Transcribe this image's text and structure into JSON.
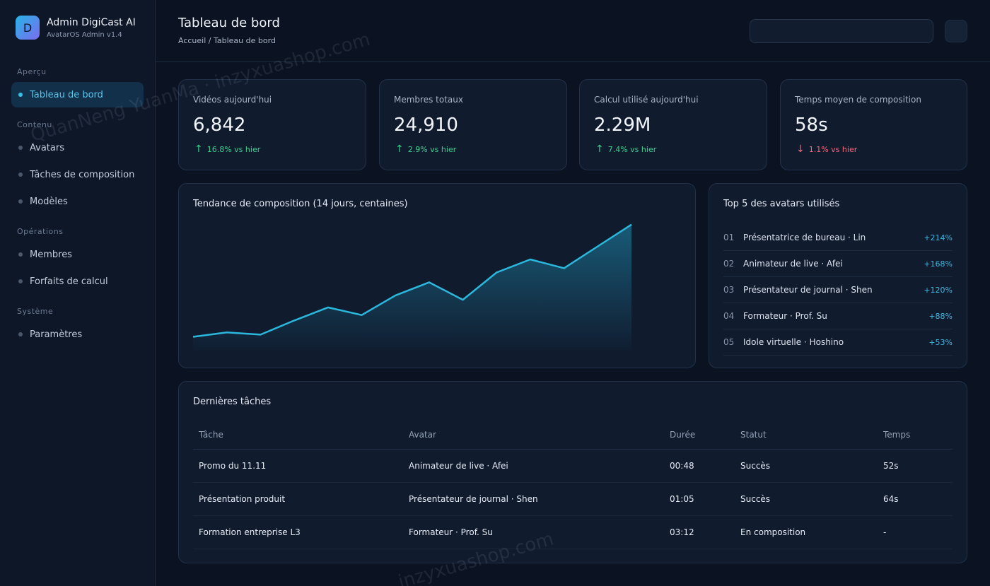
{
  "brand": {
    "initial": "D",
    "name": "Admin DigiCast AI",
    "subtitle": "AvatarOS Admin v1.4"
  },
  "nav": {
    "sections": [
      "Aperçu",
      "Contenu",
      "Opérations",
      "Système"
    ],
    "items": [
      {
        "label": "Tableau de bord"
      },
      {
        "label": "Avatars"
      },
      {
        "label": "Tâches de composition"
      },
      {
        "label": "Modèles"
      },
      {
        "label": "Membres"
      },
      {
        "label": "Forfaits de calcul"
      },
      {
        "label": "Paramètres"
      }
    ]
  },
  "header": {
    "title": "Tableau de bord",
    "breadcrumb": "Accueil / Tableau de bord",
    "search_value": ""
  },
  "stats": [
    {
      "label": "Vidéos aujourd'hui",
      "value": "6,842",
      "delta": "16.8% vs hier",
      "arrow": "↑"
    },
    {
      "label": "Membres totaux",
      "value": "24,910",
      "delta": "2.9% vs hier",
      "arrow": "↑"
    },
    {
      "label": "Calcul utilisé aujourd'hui",
      "value": "2.29M",
      "delta": "7.4% vs hier",
      "arrow": "↑"
    },
    {
      "label": "Temps moyen de composition",
      "value": "58s",
      "delta": "1.1% vs hier",
      "arrow": "↓"
    }
  ],
  "trend": {
    "title": "Tendance de composition (14 jours, centaines)"
  },
  "chart_data": {
    "type": "area",
    "title": "Tendance de composition (14 jours, centaines)",
    "x": [
      1,
      2,
      3,
      4,
      5,
      6,
      7,
      8,
      9,
      10,
      11,
      12,
      13,
      14
    ],
    "values": [
      12,
      16,
      14,
      27,
      39,
      32,
      50,
      62,
      46,
      71,
      83,
      75,
      95,
      115
    ],
    "ylim": [
      0,
      120
    ],
    "grid": false,
    "line_color": "#2bb8dc"
  },
  "top_avatars": {
    "title": "Top 5 des avatars utilisés",
    "items": [
      {
        "rank": "01",
        "name": "Présentatrice de bureau · Lin",
        "change": "+214%"
      },
      {
        "rank": "02",
        "name": "Animateur de live · Afei",
        "change": "+168%"
      },
      {
        "rank": "03",
        "name": "Présentateur de journal · Shen",
        "change": "+120%"
      },
      {
        "rank": "04",
        "name": "Formateur · Prof. Su",
        "change": "+88%"
      },
      {
        "rank": "05",
        "name": "Idole virtuelle · Hoshino",
        "change": "+53%"
      }
    ]
  },
  "tasks": {
    "title": "Dernières tâches",
    "columns": [
      "Tâche",
      "Avatar",
      "Durée",
      "Statut",
      "Temps"
    ],
    "rows": [
      {
        "task": "Promo du 11.11",
        "avatar": "Animateur de live · Afei",
        "duration": "00:48",
        "status": "Succès",
        "time": "52s"
      },
      {
        "task": "Présentation produit",
        "avatar": "Présentateur de journal · Shen",
        "duration": "01:05",
        "status": "Succès",
        "time": "64s"
      },
      {
        "task": "Formation entreprise L3",
        "avatar": "Formateur · Prof. Su",
        "duration": "03:12",
        "status": "En composition",
        "time": "-"
      }
    ]
  },
  "watermark": [
    "QuanNeng YuanMa · inzyxuashop.com",
    "inzyxuashop.com"
  ],
  "colors": {
    "accent": "#39c0e6",
    "success": "#3ecf8e",
    "danger": "#f06b7c",
    "warning": "#e8b15a"
  }
}
